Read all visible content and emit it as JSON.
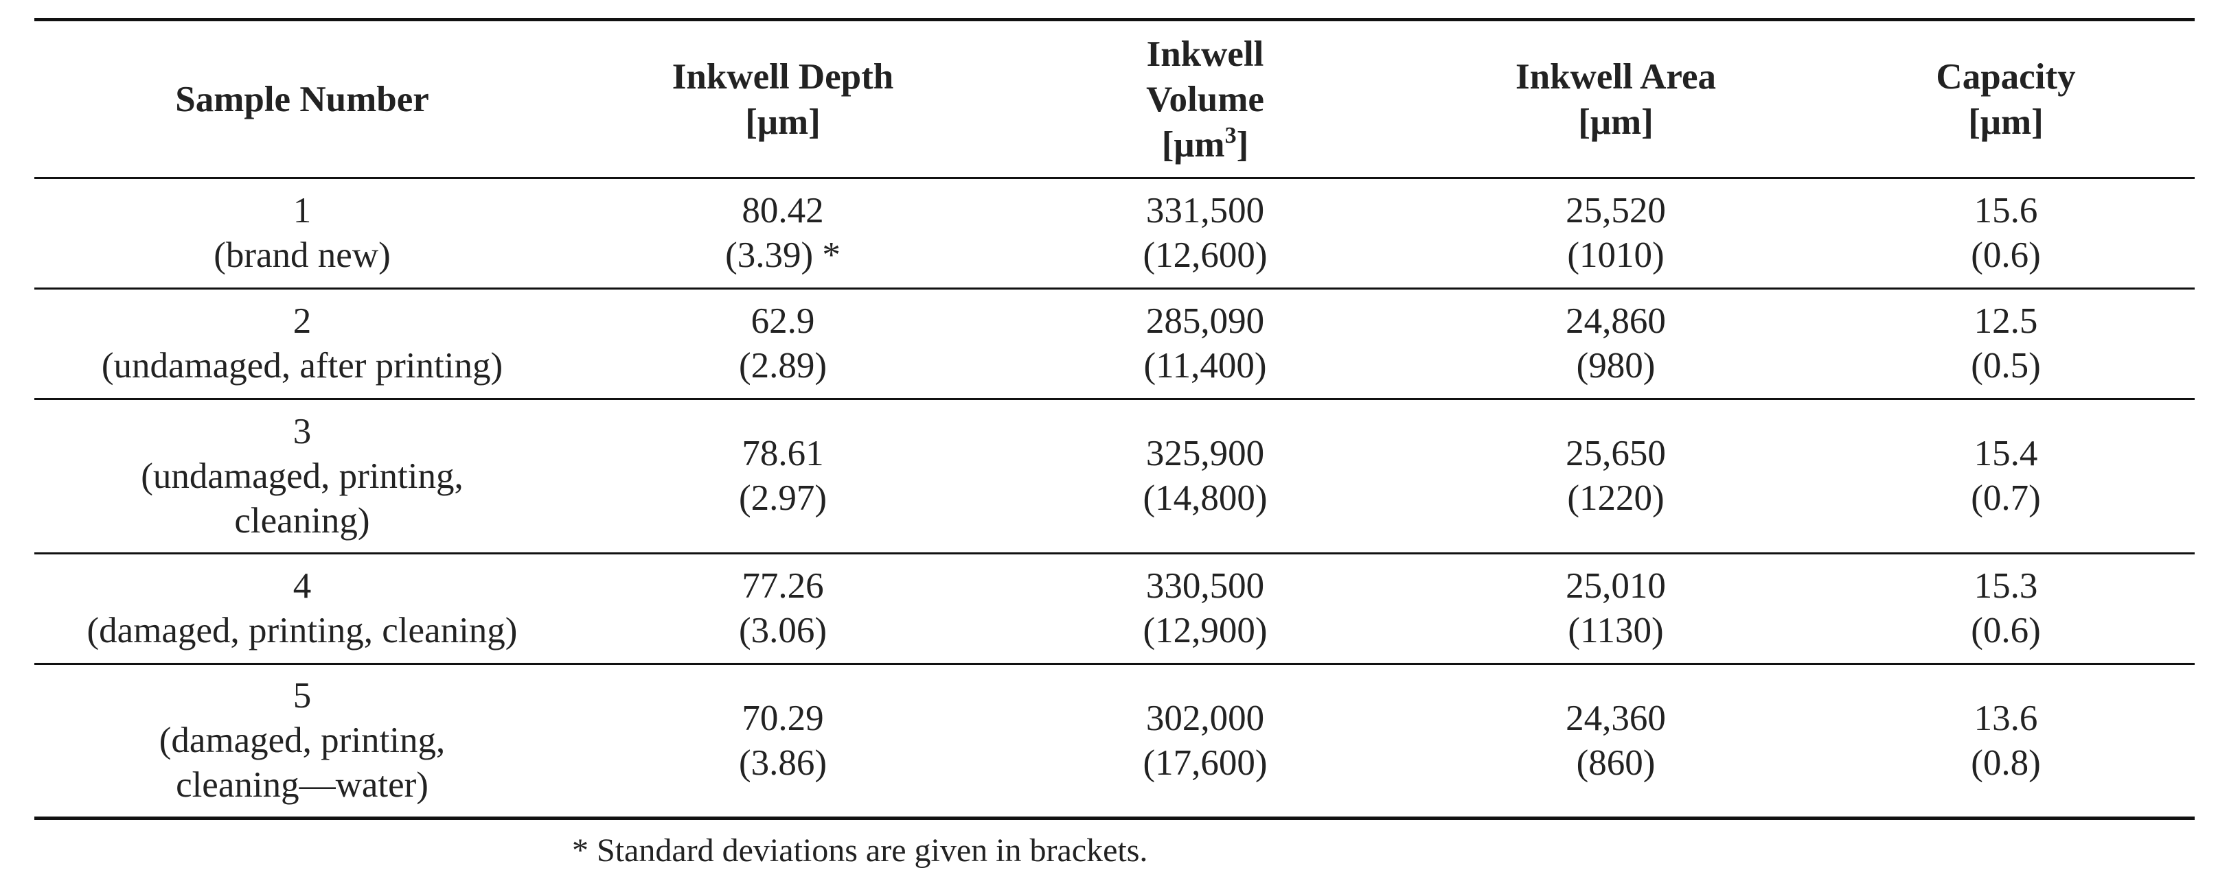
{
  "table": {
    "headers": [
      {
        "lines": [
          "Sample Number"
        ]
      },
      {
        "lines": [
          "Inkwell Depth",
          "[μm]"
        ]
      },
      {
        "lines": [
          "Inkwell",
          "Volume"
        ],
        "unit_open": "[μm",
        "unit_sup": "3",
        "unit_close": "]"
      },
      {
        "lines": [
          "Inkwell Area",
          "[μm]"
        ]
      },
      {
        "lines": [
          "Capacity",
          "[μm]"
        ]
      }
    ],
    "rows": [
      {
        "sample": [
          "1",
          "(brand new)"
        ],
        "depth": [
          "80.42",
          "(3.39) *"
        ],
        "volume": [
          "331,500",
          "(12,600)"
        ],
        "area": [
          "25,520",
          "(1010)"
        ],
        "capacity": [
          "15.6",
          "(0.6)"
        ]
      },
      {
        "sample": [
          "2",
          "(undamaged, after printing)"
        ],
        "depth": [
          "62.9",
          "(2.89)"
        ],
        "volume": [
          "285,090",
          "(11,400)"
        ],
        "area": [
          "24,860",
          "(980)"
        ],
        "capacity": [
          "12.5",
          "(0.5)"
        ]
      },
      {
        "sample": [
          "3",
          "(undamaged, printing,",
          "cleaning)"
        ],
        "depth": [
          "78.61",
          "(2.97)"
        ],
        "volume": [
          "325,900",
          "(14,800)"
        ],
        "area": [
          "25,650",
          "(1220)"
        ],
        "capacity": [
          "15.4",
          "(0.7)"
        ]
      },
      {
        "sample": [
          "4",
          "(damaged, printing, cleaning)"
        ],
        "depth": [
          "77.26",
          "(3.06)"
        ],
        "volume": [
          "330,500",
          "(12,900)"
        ],
        "area": [
          "25,010",
          "(1130)"
        ],
        "capacity": [
          "15.3",
          "(0.6)"
        ]
      },
      {
        "sample": [
          "5",
          "(damaged, printing,",
          "cleaning—water)"
        ],
        "depth": [
          "70.29",
          "(3.86)"
        ],
        "volume": [
          "302,000",
          "(17,600)"
        ],
        "area": [
          "24,360",
          "(860)"
        ],
        "capacity": [
          "13.6",
          "(0.8)"
        ]
      }
    ]
  },
  "footnote": "* Standard deviations are given in brackets."
}
